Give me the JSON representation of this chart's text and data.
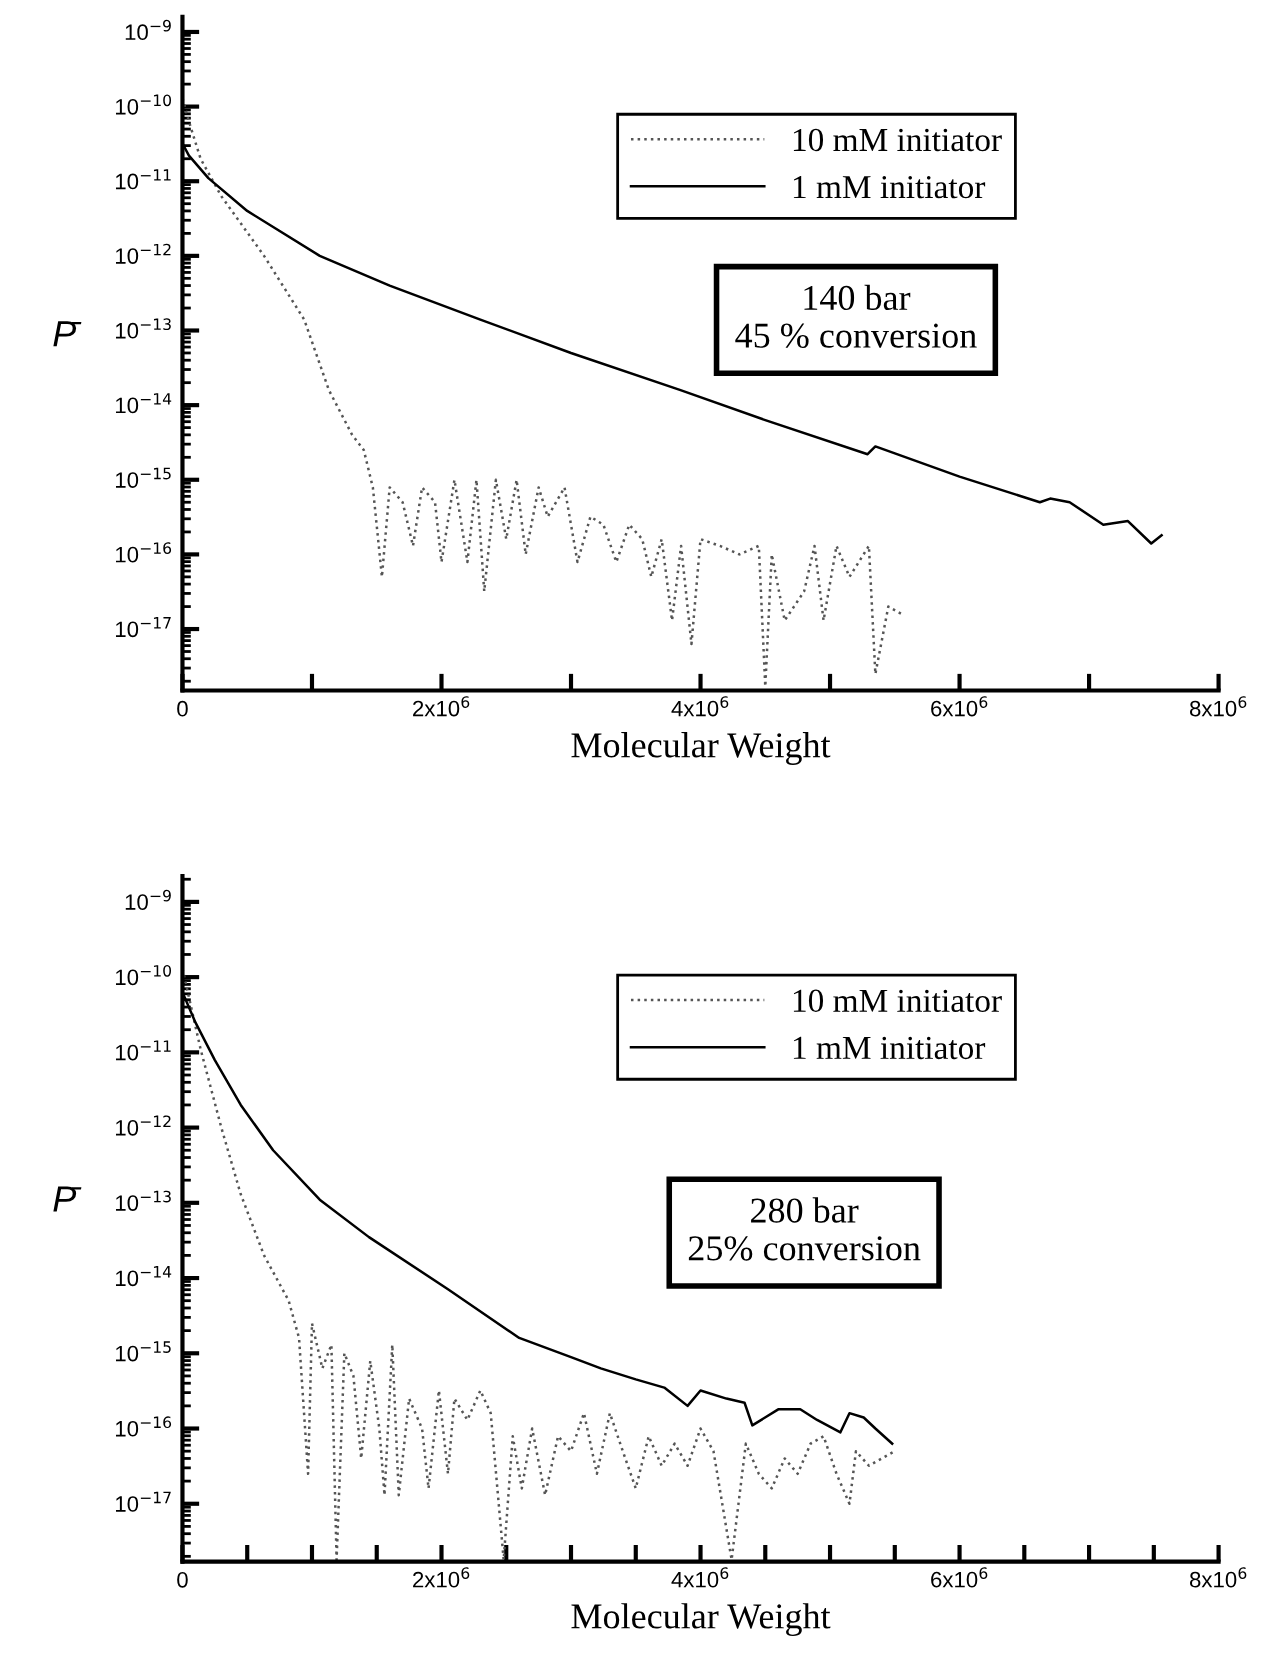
{
  "chart_data": [
    {
      "type": "line",
      "xlabel": "Molecular Weight",
      "ylabel": "P̄",
      "log": "y",
      "legend": "top right",
      "grid": false,
      "marker": "none",
      "xlim": [
        0,
        8000000
      ],
      "ylim": [
        1.5e-18,
        1.6e-09
      ],
      "xticks": [
        0,
        {
          "value": 1000000,
          "label": null
        },
        {
          "value": 2000000,
          "label": "2x10$^{6}$"
        },
        {
          "value": 3000000,
          "label": null
        },
        {
          "value": 4000000,
          "label": "4x10$^{6}$"
        },
        {
          "value": 5000000,
          "label": null
        },
        {
          "value": 6000000,
          "label": "6x10$^{6}$"
        },
        {
          "value": 7000000,
          "label": null
        },
        {
          "value": 8000000,
          "label": "8x10$^{6}$"
        }
      ],
      "yticks": [
        {
          "value": 1e-09,
          "label": "10$^{−9}$"
        },
        {
          "value": 1e-10,
          "label": "10$^{−10}$"
        },
        {
          "value": 1e-11,
          "label": "10$^{−11}$"
        },
        {
          "value": 1e-12,
          "label": "10$^{−12}$"
        },
        {
          "value": 1e-13,
          "label": "10$^{−13}$"
        },
        {
          "value": 1e-14,
          "label": "10$^{−14}$"
        },
        {
          "value": 1e-15,
          "label": "10$^{−15}$"
        },
        {
          "value": 1e-16,
          "label": "10$^{−16}$"
        },
        {
          "value": 1e-17,
          "label": "10$^{−17}$"
        }
      ],
      "annotations": [
        "140 bar\n45 % conversion"
      ],
      "series": [
        {
          "name": "10 mM initiator",
          "color": "#555555",
          "line_style": "dotted",
          "x": [
            0,
            50000.0,
            140000.0,
            300000.0,
            630000.0,
            940000.0,
            1130000.0,
            1310000.0,
            1400000.0,
            1470000.0,
            1540000.0,
            1600000.0,
            1700000.0,
            1780000.0,
            1850000.0,
            1950000.0,
            2000000.0,
            2100000.0,
            2200000.0,
            2270000.0,
            2330000.0,
            2420000.0,
            2500000.0,
            2580000.0,
            2650000.0,
            2750000.0,
            2820000.0,
            2950000.0,
            3050000.0,
            3150000.0,
            3250000.0,
            3350000.0,
            3450000.0,
            3550000.0,
            3620000.0,
            3700000.0,
            3780000.0,
            3850000.0,
            3930000.0,
            4000000.0,
            4150000.0,
            4300000.0,
            4450000.0,
            4500000.0,
            4550000.0,
            4650000.0,
            4800000.0,
            4880000.0,
            4950000.0,
            5050000.0,
            5150000.0,
            5300000.0,
            5350000.0,
            5450000.0,
            5550000.0
          ],
          "values": [
            1.3e-10,
            6.3e-11,
            2e-11,
            6.3e-12,
            1e-12,
            1.4e-13,
            1.6e-14,
            4e-15,
            2.5e-15,
            7.9e-16,
            5e-17,
            7.9e-16,
            5e-16,
            1.3e-16,
            7.9e-16,
            5e-16,
            7.9e-17,
            1e-15,
            7.9e-17,
            1e-15,
            3.2e-17,
            1e-15,
            1.6e-16,
            1e-15,
            1e-16,
            7.9e-16,
            3.2e-16,
            7.9e-16,
            7.9e-17,
            3.2e-16,
            2.5e-16,
            7.9e-17,
            2.5e-16,
            1.6e-16,
            5e-17,
            1.6e-16,
            1.3e-17,
            1.3e-16,
            6.3e-18,
            1.6e-16,
            1.3e-16,
            1e-16,
            1.3e-16,
            1.7e-18,
            1e-16,
            1.3e-17,
            3.2e-17,
            1.3e-16,
            1.3e-17,
            1.3e-16,
            5e-17,
            1.3e-16,
            2.5e-18,
            2e-17,
            1.6e-17
          ]
        },
        {
          "name": "1 mM initiator",
          "color": "#000000",
          "line_style": "solid",
          "x": [
            0,
            50000.0,
            200000.0,
            500000.0,
            1060000.0,
            1600000.0,
            2300000.0,
            3000000.0,
            3840000.0,
            4500000.0,
            5290000.0,
            5350000.0,
            6000000.0,
            6620000.0,
            6700000.0,
            6850000.0,
            7110000.0,
            7300000.0,
            7480000.0,
            7560000.0
          ],
          "values": [
            3.2e-11,
            2.2e-11,
            1.1e-11,
            4e-12,
            1e-12,
            4e-13,
            1.4e-13,
            5e-14,
            1.6e-14,
            6.3e-15,
            2.2e-15,
            2.8e-15,
            1.1e-15,
            5e-16,
            5.6e-16,
            5e-16,
            2.5e-16,
            2.8e-16,
            1.4e-16,
            1.8e-16
          ]
        }
      ]
    },
    {
      "type": "line",
      "xlabel": "Molecular Weight",
      "ylabel": "P̄",
      "log": "y",
      "legend": "top right",
      "grid": false,
      "marker": "none",
      "xlim": [
        0,
        8000000
      ],
      "ylim": [
        1.7e-18,
        2.2e-09
      ],
      "xticks": [
        0,
        {
          "value": 500000,
          "label": null
        },
        {
          "value": 1000000,
          "label": null
        },
        {
          "value": 1500000,
          "label": null
        },
        {
          "value": 2000000,
          "label": "2x10$^{6}$"
        },
        {
          "value": 2500000,
          "label": null
        },
        {
          "value": 3000000,
          "label": null
        },
        {
          "value": 3500000,
          "label": null
        },
        {
          "value": 4000000,
          "label": "4x10$^{6}$"
        },
        {
          "value": 4500000,
          "label": null
        },
        {
          "value": 5000000,
          "label": null
        },
        {
          "value": 5500000,
          "label": null
        },
        {
          "value": 6000000,
          "label": "6x10$^{6}$"
        },
        {
          "value": 6500000,
          "label": null
        },
        {
          "value": 7000000,
          "label": null
        },
        {
          "value": 7500000,
          "label": null
        },
        {
          "value": 8000000,
          "label": "8x10$^{6}$"
        }
      ],
      "yticks": [
        {
          "value": 1e-09,
          "label": "10$^{−9}$"
        },
        {
          "value": 1e-10,
          "label": "10$^{−10}$"
        },
        {
          "value": 1e-11,
          "label": "10$^{−11}$"
        },
        {
          "value": 1e-12,
          "label": "10$^{−12}$"
        },
        {
          "value": 1e-13,
          "label": "10$^{−13}$"
        },
        {
          "value": 1e-14,
          "label": "10$^{−14}$"
        },
        {
          "value": 1e-15,
          "label": "10$^{−15}$"
        },
        {
          "value": 1e-16,
          "label": "10$^{−16}$"
        },
        {
          "value": 1e-17,
          "label": "10$^{−17}$"
        }
      ],
      "annotations": [
        "280 bar\n25% conversion"
      ],
      "series": [
        {
          "name": "10 mM initiator",
          "color": "#555555",
          "line_style": "dotted",
          "x": [
            0,
            140000.0,
            300000.0,
            450000.0,
            630000.0,
            820000.0,
            900000.0,
            970000.0,
            1000000.0,
            1080000.0,
            1150000.0,
            1190000.0,
            1250000.0,
            1320000.0,
            1380000.0,
            1450000.0,
            1520000.0,
            1560000.0,
            1620000.0,
            1670000.0,
            1750000.0,
            1850000.0,
            1900000.0,
            1980000.0,
            2050000.0,
            2100000.0,
            2200000.0,
            2300000.0,
            2380000.0,
            2480000.0,
            2550000.0,
            2620000.0,
            2700000.0,
            2800000.0,
            2900000.0,
            3000000.0,
            3100000.0,
            3200000.0,
            3300000.0,
            3400000.0,
            3500000.0,
            3600000.0,
            3700000.0,
            3800000.0,
            3900000.0,
            4000000.0,
            4100000.0,
            4240000.0,
            4350000.0,
            4450000.0,
            4550000.0,
            4650000.0,
            4750000.0,
            4850000.0,
            4950000.0,
            5050000.0,
            5150000.0,
            5200000.0,
            5300000.0,
            5400000.0,
            5500000.0
          ],
          "values": [
            1.3e-10,
            1.1e-11,
            1e-12,
            1.3e-13,
            2e-14,
            5e-15,
            1.6e-15,
            2.5e-17,
            2.5e-15,
            6.3e-16,
            1.3e-15,
            1.8e-18,
            1e-15,
            5e-16,
            4e-17,
            7.9e-16,
            1e-16,
            1.3e-17,
            1.3e-15,
            1.3e-17,
            2.5e-16,
            1e-16,
            1.6e-17,
            3.2e-16,
            2.5e-17,
            2.5e-16,
            1.3e-16,
            3.2e-16,
            1.6e-16,
            1.8e-18,
            7.9e-17,
            1.6e-17,
            1e-16,
            1.3e-17,
            7.9e-17,
            5e-17,
            1.6e-16,
            2.5e-17,
            1.6e-16,
            5e-17,
            1.6e-17,
            7.9e-17,
            3.2e-17,
            6.3e-17,
            3.2e-17,
            1e-16,
            5e-17,
            1.8e-18,
            6.3e-17,
            2.5e-17,
            1.6e-17,
            4e-17,
            2.5e-17,
            6.3e-17,
            7.9e-17,
            2.5e-17,
            1e-17,
            5e-17,
            3.2e-17,
            4e-17,
            5e-17
          ]
        },
        {
          "name": "1 mM initiator",
          "color": "#000000",
          "line_style": "solid",
          "x": [
            0,
            100000.0,
            250000.0,
            450000.0,
            700000.0,
            1060000.0,
            1440000.0,
            2050000.0,
            2600000.0,
            3000000.0,
            3230000.0,
            3500000.0,
            3720000.0,
            3900000.0,
            4000000.0,
            4200000.0,
            4340000.0,
            4400000.0,
            4600000.0,
            4770000.0,
            4900000.0,
            5080000.0,
            5150000.0,
            5260000.0,
            5350000.0,
            5480000.0
          ],
          "values": [
            6.3e-11,
            2.5e-11,
            7.9e-12,
            2e-12,
            5e-13,
            1.1e-13,
            3.5e-14,
            7.1e-15,
            1.6e-15,
            8.9e-16,
            6.3e-16,
            4.5e-16,
            3.5e-16,
            2e-16,
            3.2e-16,
            2.5e-16,
            2.2e-16,
            1.1e-16,
            1.8e-16,
            1.8e-16,
            1.3e-16,
            8.9e-17,
            1.6e-16,
            1.4e-16,
            1e-16,
            6.3e-17
          ]
        }
      ]
    }
  ]
}
